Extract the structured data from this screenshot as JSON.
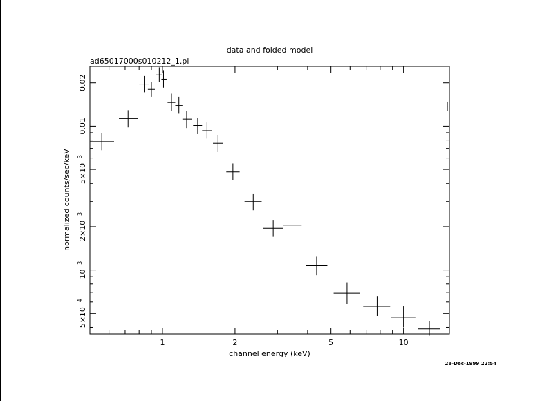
{
  "chart_data": {
    "type": "scatter",
    "title": "data and folded model",
    "subtitle": "ad65017000s010212_1.pi",
    "xlabel": "channel energy (keV)",
    "ylabel": "normalized counts/sec/keV",
    "xscale": "log",
    "yscale": "log",
    "xlim": [
      0.5,
      15.5
    ],
    "ylim": [
      0.00036,
      0.026
    ],
    "xticks": [
      {
        "value": 1,
        "label": "1"
      },
      {
        "value": 2,
        "label": "2"
      },
      {
        "value": 5,
        "label": "5"
      },
      {
        "value": 10,
        "label": "10"
      }
    ],
    "yticks": [
      {
        "value": 0.0005,
        "base": "5×10",
        "exp": "−4"
      },
      {
        "value": 0.001,
        "base": "10",
        "exp": "−3"
      },
      {
        "value": 0.002,
        "base": "2×10",
        "exp": "−3"
      },
      {
        "value": 0.005,
        "base": "5×10",
        "exp": "−3"
      },
      {
        "value": 0.01,
        "base": "0.01",
        "exp": ""
      },
      {
        "value": 0.02,
        "base": "0.02",
        "exp": ""
      }
    ],
    "points": [
      {
        "x": 0.56,
        "xlo": 0.5,
        "xhi": 0.63,
        "y": 0.0078,
        "ylo": 0.0068,
        "yhi": 0.0089
      },
      {
        "x": 0.72,
        "xlo": 0.66,
        "xhi": 0.79,
        "y": 0.0113,
        "ylo": 0.0098,
        "yhi": 0.0129
      },
      {
        "x": 0.84,
        "xlo": 0.8,
        "xhi": 0.88,
        "y": 0.0196,
        "ylo": 0.0172,
        "yhi": 0.0223
      },
      {
        "x": 0.9,
        "xlo": 0.87,
        "xhi": 0.93,
        "y": 0.018,
        "ylo": 0.016,
        "yhi": 0.0203
      },
      {
        "x": 0.97,
        "xlo": 0.94,
        "xhi": 1.0,
        "y": 0.0227,
        "ylo": 0.0202,
        "yhi": 0.0256
      },
      {
        "x": 1.01,
        "xlo": 0.99,
        "xhi": 1.04,
        "y": 0.0212,
        "ylo": 0.0185,
        "yhi": 0.0245
      },
      {
        "x": 1.09,
        "xlo": 1.05,
        "xhi": 1.13,
        "y": 0.0146,
        "ylo": 0.0127,
        "yhi": 0.0168
      },
      {
        "x": 1.17,
        "xlo": 1.13,
        "xhi": 1.21,
        "y": 0.0139,
        "ylo": 0.0122,
        "yhi": 0.016
      },
      {
        "x": 1.26,
        "xlo": 1.21,
        "xhi": 1.32,
        "y": 0.0112,
        "ylo": 0.0097,
        "yhi": 0.0128
      },
      {
        "x": 1.4,
        "xlo": 1.34,
        "xhi": 1.46,
        "y": 0.0101,
        "ylo": 0.0088,
        "yhi": 0.0114
      },
      {
        "x": 1.53,
        "xlo": 1.46,
        "xhi": 1.6,
        "y": 0.0093,
        "ylo": 0.0082,
        "yhi": 0.0106
      },
      {
        "x": 1.7,
        "xlo": 1.62,
        "xhi": 1.78,
        "y": 0.0076,
        "ylo": 0.0066,
        "yhi": 0.0087
      },
      {
        "x": 1.96,
        "xlo": 1.84,
        "xhi": 2.09,
        "y": 0.0048,
        "ylo": 0.0042,
        "yhi": 0.0055
      },
      {
        "x": 2.38,
        "xlo": 2.19,
        "xhi": 2.58,
        "y": 0.003,
        "ylo": 0.0026,
        "yhi": 0.0034
      },
      {
        "x": 2.88,
        "xlo": 2.62,
        "xhi": 3.16,
        "y": 0.00195,
        "ylo": 0.0017,
        "yhi": 0.00223
      },
      {
        "x": 3.45,
        "xlo": 3.16,
        "xhi": 3.78,
        "y": 0.00205,
        "ylo": 0.0018,
        "yhi": 0.00234
      },
      {
        "x": 4.36,
        "xlo": 3.94,
        "xhi": 4.83,
        "y": 0.00107,
        "ylo": 0.00092,
        "yhi": 0.00125
      },
      {
        "x": 5.83,
        "xlo": 5.13,
        "xhi": 6.6,
        "y": 0.00069,
        "ylo": 0.00058,
        "yhi": 0.00082
      },
      {
        "x": 7.77,
        "xlo": 6.8,
        "xhi": 8.8,
        "y": 0.00056,
        "ylo": 0.00048,
        "yhi": 0.00066
      },
      {
        "x": 10.0,
        "xlo": 8.9,
        "xhi": 11.2,
        "y": 0.00047,
        "ylo": 0.0004,
        "yhi": 0.00056
      },
      {
        "x": 12.8,
        "xlo": 11.5,
        "xhi": 14.2,
        "y": 0.00039,
        "ylo": 0.00035,
        "yhi": 0.00044
      },
      {
        "x": 15.2,
        "xlo": 15.15,
        "xhi": 15.25,
        "y": 0.0137,
        "ylo": 0.0128,
        "yhi": 0.0148
      }
    ],
    "grid": false,
    "legend": "none"
  },
  "footer": {
    "timestamp": "28-Dec-1999 22:54"
  }
}
